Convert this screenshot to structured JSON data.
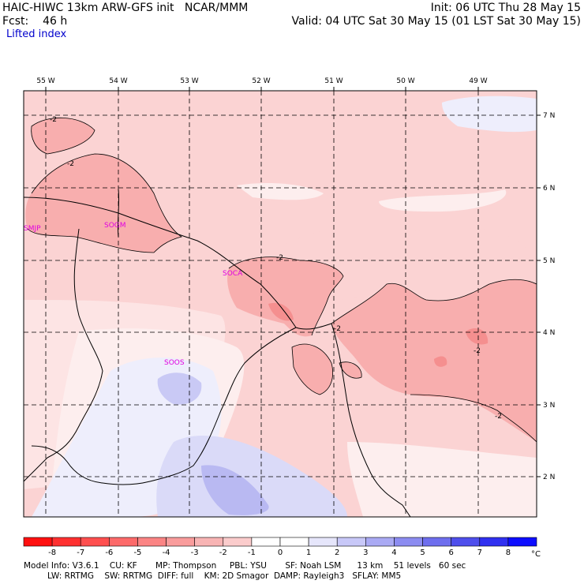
{
  "header": {
    "title_left": "HAIC-HIWC 13km ARW-GFS init   NCAR/MMM",
    "fcst_label": "Fcst:",
    "fcst_value": "46 h",
    "init": "Init: 06 UTC Thu 28 May 15",
    "valid": "Valid: 04 UTC Sat 30 May 15 (01 LST Sat 30 May 15)",
    "field": "Lifted index"
  },
  "map": {
    "lon_labels": [
      "55 W",
      "54 W",
      "53 W",
      "52 W",
      "51 W",
      "50 W",
      "49 W"
    ],
    "lat_labels": [
      "7 N",
      "6 N",
      "5 N",
      "4 N",
      "3 N",
      "2 N"
    ],
    "stations": [
      "SMJP",
      "SOGM",
      "SOCA",
      "SOOS"
    ],
    "contour_labels": [
      "-2",
      "-2",
      "-2",
      "-2",
      "-2",
      "-2"
    ],
    "colors": {
      "neg_light": "#fbd3d3",
      "neg_mid": "#f8aeae",
      "neg_deep": "#f58f8f",
      "near_zero": "#fdeeee",
      "pos_light": "#dadaf8",
      "pos_mid": "#b9b9f2"
    }
  },
  "colorbar": {
    "ticks": [
      "-8",
      "-7",
      "-6",
      "-5",
      "-4",
      "-3",
      "-2",
      "-1",
      "0",
      "1",
      "2",
      "3",
      "4",
      "5",
      "6",
      "7",
      "8"
    ],
    "unit": "°C",
    "colors": [
      "#ff1010",
      "#ff3030",
      "#ff4f4f",
      "#fd6a6a",
      "#fb8484",
      "#f99c9c",
      "#f8b4b4",
      "#fbcccc",
      "#fde4e4",
      "#e6e6fb",
      "#c8c8f8",
      "#aaaaf4",
      "#8c8cf1",
      "#6e6eee",
      "#4f4fec",
      "#3030f0",
      "#0d0dff"
    ]
  },
  "footer": {
    "line1": "Model Info: V3.6.1    CU: KF       MP: Thompson     PBL: YSU       SF: Noah LSM      13 km    51 levels   60 sec",
    "line2": "         LW: RRTMG    SW: RRTMG  DIFF: full    KM: 2D Smagor  DAMP: Rayleigh3   SFLAY: MM5"
  }
}
